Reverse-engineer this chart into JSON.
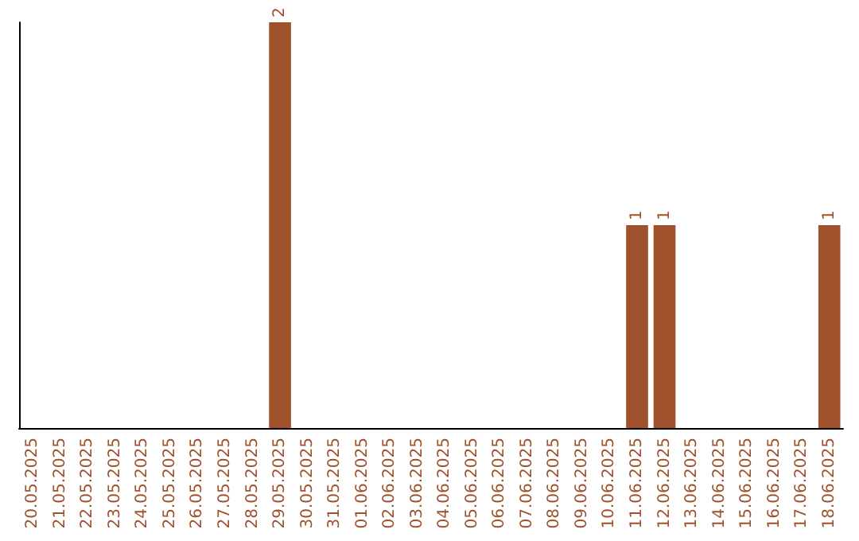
{
  "chart_data": {
    "type": "bar",
    "categories": [
      "20.05.2025",
      "21.05.2025",
      "22.05.2025",
      "23.05.2025",
      "24.05.2025",
      "25.05.2025",
      "26.05.2025",
      "27.05.2025",
      "28.05.2025",
      "29.05.2025",
      "30.05.2025",
      "31.05.2025",
      "01.06.2025",
      "02.06.2025",
      "03.06.2025",
      "04.06.2025",
      "05.06.2025",
      "06.06.2025",
      "07.06.2025",
      "08.06.2025",
      "09.06.2025",
      "10.06.2025",
      "11.06.2025",
      "12.06.2025",
      "13.06.2025",
      "14.06.2025",
      "15.06.2025",
      "16.06.2025",
      "17.06.2025",
      "18.06.2025"
    ],
    "values": [
      0,
      0,
      0,
      0,
      0,
      0,
      0,
      0,
      0,
      2,
      0,
      0,
      0,
      0,
      0,
      0,
      0,
      0,
      0,
      0,
      0,
      0,
      1,
      1,
      0,
      0,
      0,
      0,
      0,
      1
    ],
    "value_labels": [
      null,
      null,
      null,
      null,
      null,
      null,
      null,
      null,
      null,
      "2",
      null,
      null,
      null,
      null,
      null,
      null,
      null,
      null,
      null,
      null,
      null,
      null,
      "1",
      "1",
      null,
      null,
      null,
      null,
      null,
      "1"
    ],
    "color": "#a0522d",
    "tick_labels": "x"
  }
}
